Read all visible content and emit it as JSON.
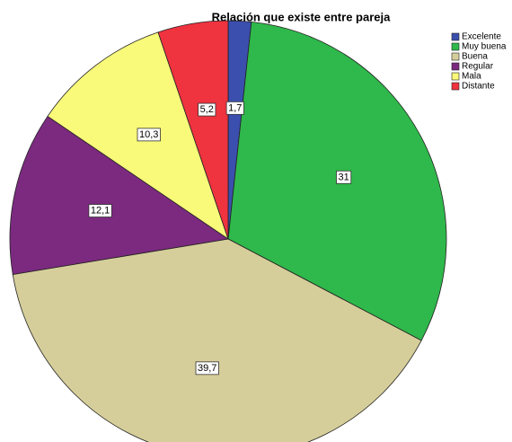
{
  "chart_data": {
    "type": "pie",
    "title": "Relación que existe entre pareja",
    "categories": [
      "Excelente",
      "Muy buena",
      "Buena",
      "Regular",
      "Mala",
      "Distante"
    ],
    "values": [
      1.7,
      31,
      39.7,
      12.1,
      10.3,
      5.2
    ],
    "value_labels": [
      "1,7",
      "31",
      "39,7",
      "12,1",
      "10,3",
      "5,2"
    ],
    "colors": [
      "#3b4fae",
      "#2fb84b",
      "#d6ce9a",
      "#7b2a7f",
      "#f9f97a",
      "#ef333f"
    ],
    "legend": "right"
  }
}
